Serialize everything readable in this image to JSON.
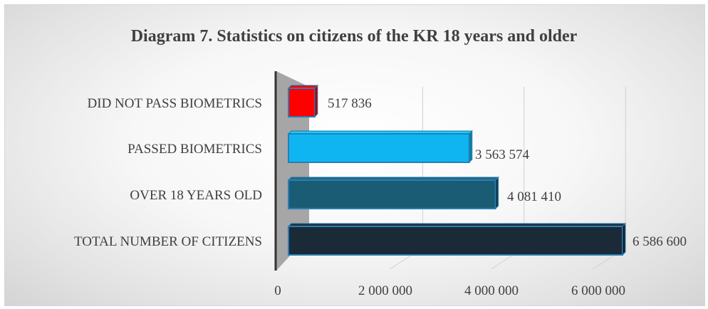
{
  "chart_data": {
    "type": "bar",
    "orientation": "horizontal",
    "title": "Diagram 7. Statistics on citizens of the KR 18 years and older",
    "categories": [
      "DID NOT PASS BIOMETRICS",
      "PASSED BIOMETRICS",
      "OVER 18 YEARS OLD",
      "TOTAL NUMBER OF CITIZENS"
    ],
    "values": [
      517836,
      3563574,
      4081410,
      6586600
    ],
    "value_labels": [
      "517 836",
      "3 563 574",
      "4 081 410",
      "6 586 600"
    ],
    "bar_colors": [
      "#ff0000",
      "#0fb5f0",
      "#1a5c73",
      "#1a2a36"
    ],
    "xlim": [
      0,
      6600000
    ],
    "x_ticks": [
      0,
      2000000,
      4000000,
      6000000
    ],
    "x_tick_labels": [
      "0",
      "2 000 000",
      "4 000 000",
      "6 000 000"
    ],
    "grid": true,
    "legend": "none",
    "style": "3d"
  }
}
